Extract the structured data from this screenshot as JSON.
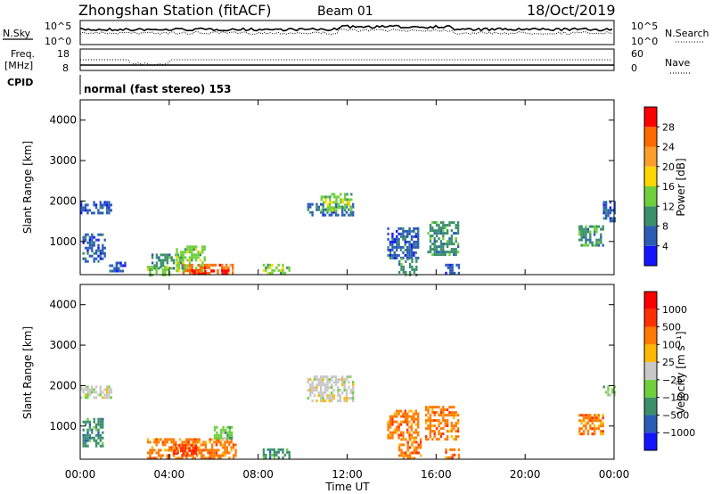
{
  "header": {
    "station": "Zhongshan Station (fitACF)",
    "beam": "Beam 01",
    "date": "18/Oct/2019"
  },
  "noise_panel": {
    "left_label": "N.Sky",
    "left_ticks": [
      "10^5",
      "10^0"
    ],
    "right_ticks": [
      "10^5",
      "10^0"
    ],
    "right_label": "N.Search"
  },
  "freq_panel": {
    "left_label_line1": "Freq.",
    "left_label_line2": "[MHz]",
    "left_ticks": [
      "18",
      "8"
    ],
    "right_ticks": [
      "60",
      "0"
    ],
    "right_label": "Nave"
  },
  "cpid": {
    "label": "CPID",
    "value": "normal (fast stereo) 153"
  },
  "chart_data": [
    {
      "type": "heatmap",
      "name": "power",
      "ylabel": "Slant Range [km]",
      "y_ticks": [
        "1000",
        "2000",
        "3000",
        "4000"
      ],
      "y_tick_values": [
        1000,
        2000,
        3000,
        4000
      ],
      "ylim": [
        180,
        4500
      ],
      "xlim": [
        0,
        24
      ],
      "colorbar": {
        "label": "Power [dB]",
        "ticks": [
          "4",
          "8",
          "12",
          "16",
          "20",
          "24",
          "28"
        ],
        "colors": [
          "#1414ff",
          "#2b5db5",
          "#3b8f6b",
          "#6fd03b",
          "#ffd700",
          "#ff9e2a",
          "#ff6a00",
          "#ff0000"
        ]
      },
      "regions": [
        {
          "t0": 0.0,
          "t1": 1.4,
          "r0": 1700,
          "r1": 2000,
          "level": 1
        },
        {
          "t0": 0.1,
          "t1": 1.1,
          "r0": 500,
          "r1": 1200,
          "level": 1
        },
        {
          "t0": 1.3,
          "t1": 2.0,
          "r0": 250,
          "r1": 500,
          "level": 1
        },
        {
          "t0": 3.0,
          "t1": 4.0,
          "r0": 200,
          "r1": 400,
          "level": 3
        },
        {
          "t0": 3.2,
          "t1": 4.6,
          "r0": 350,
          "r1": 700,
          "level": 2
        },
        {
          "t0": 4.3,
          "t1": 5.6,
          "r0": 300,
          "r1": 900,
          "level": 3
        },
        {
          "t0": 4.6,
          "t1": 6.9,
          "r0": 190,
          "r1": 450,
          "level": 6
        },
        {
          "t0": 5.0,
          "t1": 6.6,
          "r0": 190,
          "r1": 300,
          "level": 7
        },
        {
          "t0": 8.2,
          "t1": 9.4,
          "r0": 220,
          "r1": 450,
          "level": 3
        },
        {
          "t0": 10.2,
          "t1": 12.3,
          "r0": 1650,
          "r1": 1950,
          "level": 1
        },
        {
          "t0": 10.8,
          "t1": 12.2,
          "r0": 1800,
          "r1": 2200,
          "level": 3
        },
        {
          "t0": 13.8,
          "t1": 15.2,
          "r0": 600,
          "r1": 1350,
          "level": 1
        },
        {
          "t0": 14.3,
          "t1": 15.1,
          "r0": 150,
          "r1": 600,
          "level": 2
        },
        {
          "t0": 15.6,
          "t1": 17.0,
          "r0": 700,
          "r1": 1500,
          "level": 2
        },
        {
          "t0": 16.4,
          "t1": 17.0,
          "r0": 200,
          "r1": 450,
          "level": 1
        },
        {
          "t0": 22.4,
          "t1": 23.5,
          "r0": 900,
          "r1": 1400,
          "level": 2
        },
        {
          "t0": 23.5,
          "t1": 24.0,
          "r0": 1500,
          "r1": 2000,
          "level": 1
        }
      ]
    },
    {
      "type": "heatmap",
      "name": "velocity",
      "ylabel": "Slant Range [km]",
      "y_ticks": [
        "1000",
        "2000",
        "3000",
        "4000"
      ],
      "y_tick_values": [
        1000,
        2000,
        3000,
        4000
      ],
      "ylim": [
        180,
        4500
      ],
      "xlim": [
        0,
        24
      ],
      "x_ticks": [
        "00:00",
        "04:00",
        "08:00",
        "12:00",
        "16:00",
        "20:00",
        "00:00"
      ],
      "x_tick_values": [
        0,
        4,
        8,
        12,
        16,
        20,
        24
      ],
      "xlabel": "Time UT",
      "colorbar": {
        "label": "Velocity",
        "unit": "[m s⁻¹]",
        "ticks": [
          "1000",
          "500",
          "100",
          "25",
          "−25",
          "−100",
          "−500",
          "−1000"
        ],
        "colors": [
          "#1414ff",
          "#2b5db5",
          "#3b8f6b",
          "#6fd03b",
          "#c8c8c8",
          "#ffb800",
          "#ff7a00",
          "#ff3000",
          "#ff0000"
        ]
      },
      "regions": [
        {
          "t0": 0.0,
          "t1": 1.4,
          "r0": 1700,
          "r1": 2000,
          "level": 4
        },
        {
          "t0": 0.1,
          "t1": 1.0,
          "r0": 500,
          "r1": 1200,
          "level": 2
        },
        {
          "t0": 3.0,
          "t1": 7.0,
          "r0": 190,
          "r1": 700,
          "level": 6
        },
        {
          "t0": 4.2,
          "t1": 5.2,
          "r0": 300,
          "r1": 550,
          "level": 7
        },
        {
          "t0": 6.0,
          "t1": 6.8,
          "r0": 700,
          "r1": 1000,
          "level": 3
        },
        {
          "t0": 8.2,
          "t1": 9.4,
          "r0": 200,
          "r1": 450,
          "level": 2
        },
        {
          "t0": 10.2,
          "t1": 12.3,
          "r0": 1600,
          "r1": 2250,
          "level": 4
        },
        {
          "t0": 13.8,
          "t1": 15.2,
          "r0": 700,
          "r1": 1400,
          "level": 6
        },
        {
          "t0": 14.3,
          "t1": 15.3,
          "r0": 200,
          "r1": 700,
          "level": 6
        },
        {
          "t0": 15.5,
          "t1": 17.0,
          "r0": 700,
          "r1": 1500,
          "level": 6
        },
        {
          "t0": 16.4,
          "t1": 17.0,
          "r0": 200,
          "r1": 450,
          "level": 6
        },
        {
          "t0": 22.4,
          "t1": 23.5,
          "r0": 800,
          "r1": 1300,
          "level": 6
        },
        {
          "t0": 23.5,
          "t1": 24.0,
          "r0": 1800,
          "r1": 2000,
          "level": 3
        }
      ]
    }
  ]
}
